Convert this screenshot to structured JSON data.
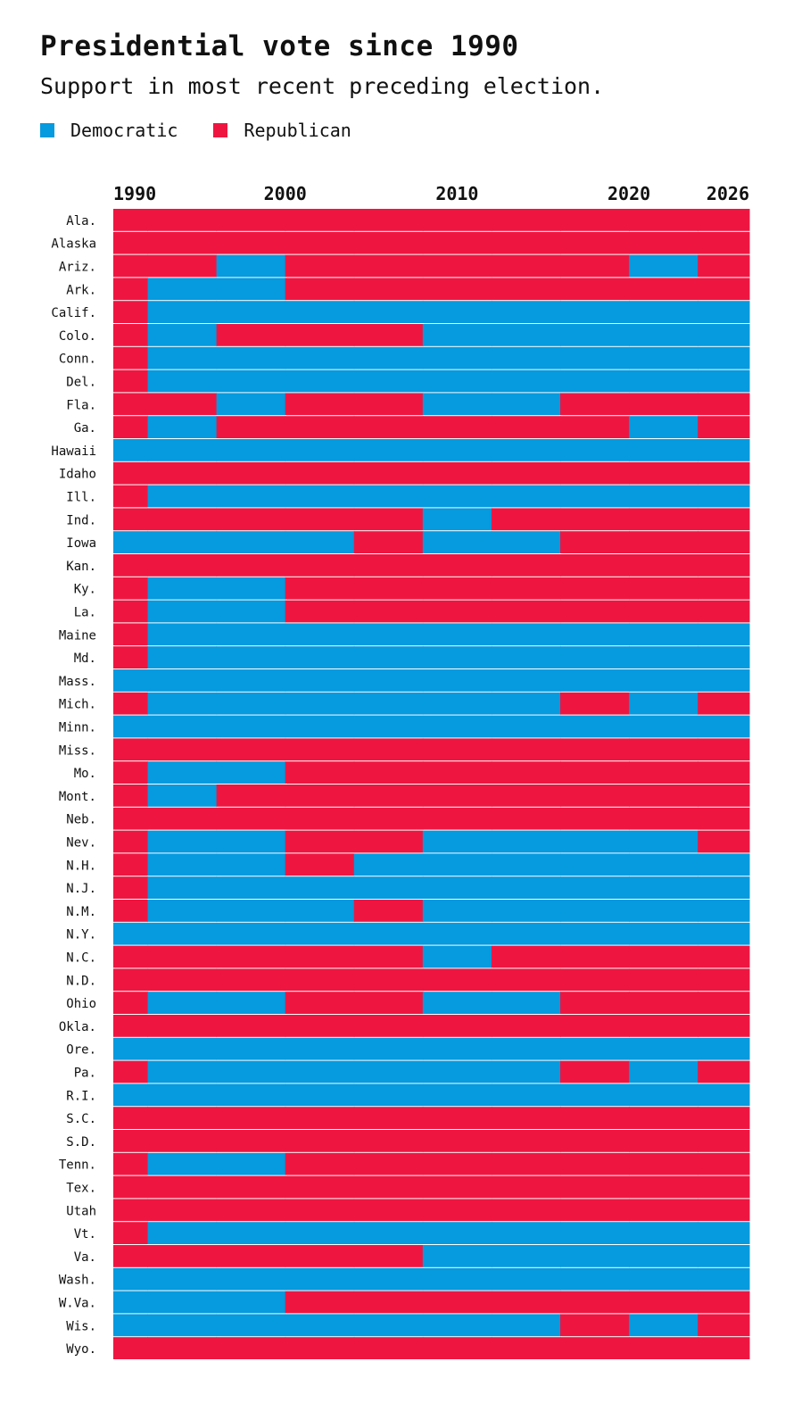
{
  "chart_data": {
    "type": "heatmap",
    "title": "Presidential vote since 1990",
    "subtitle": "Support in most recent preceding election.",
    "legend": [
      {
        "key": "D",
        "name": "Democratic",
        "color": "#069ADE"
      },
      {
        "key": "R",
        "name": "Republican",
        "color": "#EE1641"
      }
    ],
    "legend_placement": "top-left",
    "xlim": [
      1990,
      2027
    ],
    "x_ticks": [
      1990,
      2000,
      2010,
      2020,
      2026
    ],
    "period_starts": [
      1990,
      1992,
      1996,
      2000,
      2004,
      2008,
      2012,
      2016,
      2020,
      2024
    ],
    "rows": [
      {
        "state": "Ala.",
        "parties": "RRRRRRRRRR"
      },
      {
        "state": "Alaska",
        "parties": "RRRRRRRRRR"
      },
      {
        "state": "Ariz.",
        "parties": "RRDRRRRRDR"
      },
      {
        "state": "Ark.",
        "parties": "RDDRRRRRRR"
      },
      {
        "state": "Calif.",
        "parties": "RDDDDDDDDD"
      },
      {
        "state": "Colo.",
        "parties": "RDRRRDDDDD"
      },
      {
        "state": "Conn.",
        "parties": "RDDDDDDDDD"
      },
      {
        "state": "Del.",
        "parties": "RDDDDDDDDD"
      },
      {
        "state": "Fla.",
        "parties": "RRDRRDDRRR"
      },
      {
        "state": "Ga.",
        "parties": "RDRRRRRRDR"
      },
      {
        "state": "Hawaii",
        "parties": "DDDDDDDDDD"
      },
      {
        "state": "Idaho",
        "parties": "RRRRRRRRRR"
      },
      {
        "state": "Ill.",
        "parties": "RDDDDDDDDD"
      },
      {
        "state": "Ind.",
        "parties": "RRRRRDRRRR"
      },
      {
        "state": "Iowa",
        "parties": "DDDDRDDRRR"
      },
      {
        "state": "Kan.",
        "parties": "RRRRRRRRRR"
      },
      {
        "state": "Ky.",
        "parties": "RDDRRRRRRR"
      },
      {
        "state": "La.",
        "parties": "RDDRRRRRRR"
      },
      {
        "state": "Maine",
        "parties": "RDDDDDDDDD"
      },
      {
        "state": "Md.",
        "parties": "RDDDDDDDDD"
      },
      {
        "state": "Mass.",
        "parties": "DDDDDDDDDD"
      },
      {
        "state": "Mich.",
        "parties": "RDDDDDDRDR"
      },
      {
        "state": "Minn.",
        "parties": "DDDDDDDDDD"
      },
      {
        "state": "Miss.",
        "parties": "RRRRRRRRRR"
      },
      {
        "state": "Mo.",
        "parties": "RDDRRRRRRR"
      },
      {
        "state": "Mont.",
        "parties": "RDRRRRRRRR"
      },
      {
        "state": "Neb.",
        "parties": "RRRRRRRRRR"
      },
      {
        "state": "Nev.",
        "parties": "RDDRRDDDDR"
      },
      {
        "state": "N.H.",
        "parties": "RDDRDDDDDD"
      },
      {
        "state": "N.J.",
        "parties": "RDDDDDDDDD"
      },
      {
        "state": "N.M.",
        "parties": "RDDDRDDDDD"
      },
      {
        "state": "N.Y.",
        "parties": "DDDDDDDDDD"
      },
      {
        "state": "N.C.",
        "parties": "RRRRRDRRRR"
      },
      {
        "state": "N.D.",
        "parties": "RRRRRRRRRR"
      },
      {
        "state": "Ohio",
        "parties": "RDDRRDDRRR"
      },
      {
        "state": "Okla.",
        "parties": "RRRRRRRRRR"
      },
      {
        "state": "Ore.",
        "parties": "DDDDDDDDDD"
      },
      {
        "state": "Pa.",
        "parties": "RDDDDDDRDR"
      },
      {
        "state": "R.I.",
        "parties": "DDDDDDDDDD"
      },
      {
        "state": "S.C.",
        "parties": "RRRRRRRRRR"
      },
      {
        "state": "S.D.",
        "parties": "RRRRRRRRRR"
      },
      {
        "state": "Tenn.",
        "parties": "RDDRRRRRRR"
      },
      {
        "state": "Tex.",
        "parties": "RRRRRRRRRR"
      },
      {
        "state": "Utah",
        "parties": "RRRRRRRRRR"
      },
      {
        "state": "Vt.",
        "parties": "RDDDDDDDDD"
      },
      {
        "state": "Va.",
        "parties": "RRRRRDDDDD"
      },
      {
        "state": "Wash.",
        "parties": "DDDDDDDDDD"
      },
      {
        "state": "W.Va.",
        "parties": "DDDRRRRRRR"
      },
      {
        "state": "Wis.",
        "parties": "DDDDDDDRDR"
      },
      {
        "state": "Wyo.",
        "parties": "RRRRRRRRRR"
      }
    ]
  }
}
